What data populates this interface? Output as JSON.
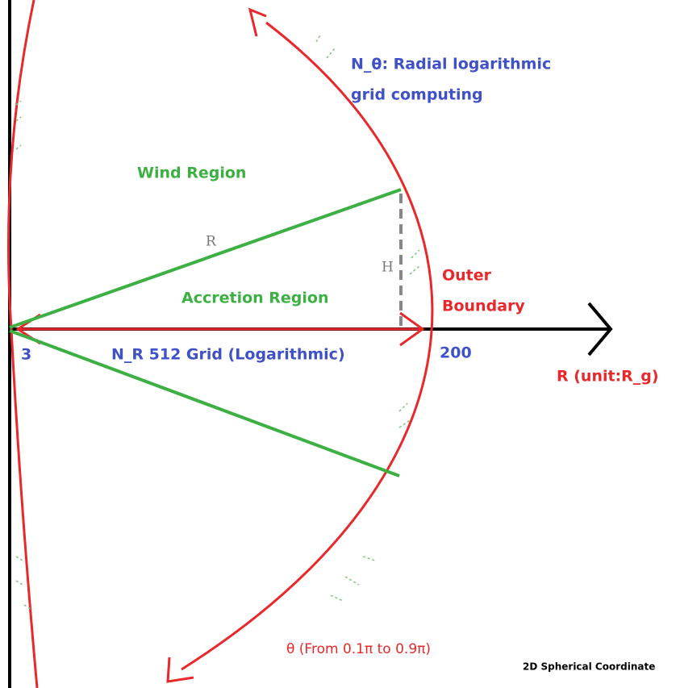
{
  "n_theta_label": [
    "N_θ: Radial logarithmic",
    "grid computing"
  ],
  "wind_region": "Wind Region",
  "accretion_region": "Accretion Region",
  "r_label": "R",
  "h_label": "H",
  "outer_boundary": [
    "Outer",
    "Boundary"
  ],
  "inner_radius": "3",
  "outer_radius": "200",
  "n_r_label": "N_R 512 Grid (Logarithmic)",
  "r_axis_label": "R (unit:R_g)",
  "theta_label": "θ (From 0.1π to 0.9π)",
  "caption": "2D Spherical Coordinate"
}
